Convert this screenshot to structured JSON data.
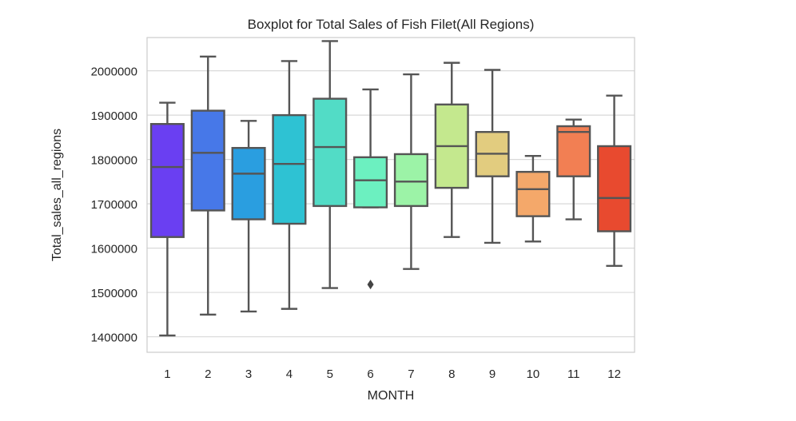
{
  "chart_data": {
    "type": "boxplot",
    "title": "Boxplot for Total Sales of Fish Filet(All Regions)",
    "xlabel": "MONTH",
    "ylabel": "Total_sales_all_regions",
    "ylim": [
      1365000,
      2075000
    ],
    "yticks": [
      1400000,
      1500000,
      1600000,
      1700000,
      1800000,
      1900000,
      2000000
    ],
    "grid": "horizontal",
    "categories": [
      "1",
      "2",
      "3",
      "4",
      "5",
      "6",
      "7",
      "8",
      "9",
      "10",
      "11",
      "12"
    ],
    "boxes": [
      {
        "category": "1",
        "whisker_low": 1403000,
        "q1": 1625000,
        "median": 1783000,
        "q3": 1880000,
        "whisker_high": 1928000,
        "outliers": [],
        "color": "#6a3ff2"
      },
      {
        "category": "2",
        "whisker_low": 1450000,
        "q1": 1685000,
        "median": 1815000,
        "q3": 1910000,
        "whisker_high": 2032000,
        "outliers": [],
        "color": "#4778e8"
      },
      {
        "category": "3",
        "whisker_low": 1457000,
        "q1": 1665000,
        "median": 1768000,
        "q3": 1826000,
        "whisker_high": 1887000,
        "outliers": [],
        "color": "#2a9ee0"
      },
      {
        "category": "4",
        "whisker_low": 1463000,
        "q1": 1655000,
        "median": 1790000,
        "q3": 1900000,
        "whisker_high": 2022000,
        "outliers": [],
        "color": "#2ec2d3"
      },
      {
        "category": "5",
        "whisker_low": 1510000,
        "q1": 1695000,
        "median": 1828000,
        "q3": 1937000,
        "whisker_high": 2067000,
        "outliers": [],
        "color": "#52dcc6"
      },
      {
        "category": "6",
        "whisker_low": 1692000,
        "q1": 1692000,
        "median": 1753000,
        "q3": 1805000,
        "whisker_high": 1958000,
        "outliers": [
          1518000
        ],
        "color": "#6cf0c0"
      },
      {
        "category": "7",
        "whisker_low": 1553000,
        "q1": 1695000,
        "median": 1750000,
        "q3": 1812000,
        "whisker_high": 1992000,
        "outliers": [],
        "color": "#9cf3a7"
      },
      {
        "category": "8",
        "whisker_low": 1625000,
        "q1": 1736000,
        "median": 1830000,
        "q3": 1924000,
        "whisker_high": 2018000,
        "outliers": [],
        "color": "#c4e88e"
      },
      {
        "category": "9",
        "whisker_low": 1612000,
        "q1": 1762000,
        "median": 1813000,
        "q3": 1862000,
        "whisker_high": 2002000,
        "outliers": [],
        "color": "#e2cc7f"
      },
      {
        "category": "10",
        "whisker_low": 1615000,
        "q1": 1672000,
        "median": 1733000,
        "q3": 1772000,
        "whisker_high": 1808000,
        "outliers": [],
        "color": "#f4a86a"
      },
      {
        "category": "11",
        "whisker_low": 1665000,
        "q1": 1762000,
        "median": 1862000,
        "q3": 1875000,
        "whisker_high": 1890000,
        "outliers": [],
        "color": "#f27f53"
      },
      {
        "category": "12",
        "whisker_low": 1560000,
        "q1": 1638000,
        "median": 1713000,
        "q3": 1830000,
        "whisker_high": 1944000,
        "outliers": [],
        "color": "#e84a2f"
      }
    ]
  }
}
